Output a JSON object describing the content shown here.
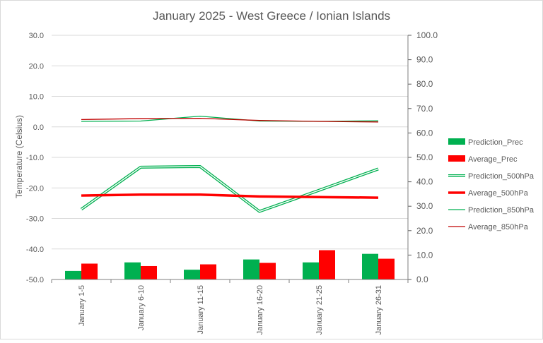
{
  "chart_data": {
    "type": "combo-bar-line",
    "title": "January 2025 - West Greece / Ionian Islands",
    "ylabel": "Temperature (Celsius)",
    "y2label": "",
    "categories": [
      "January 1-5",
      "January 6-10",
      "January 11-15",
      "January 16-20",
      "January 21-25",
      "January 26-31"
    ],
    "ylim": [
      -50,
      30
    ],
    "yticks": [
      "30.0",
      "20.0",
      "10.0",
      "0.0",
      "-10.0",
      "-20.0",
      "-30.0",
      "-40.0",
      "-50.0"
    ],
    "y2lim": [
      0,
      100
    ],
    "y2ticks": [
      "100.0",
      "90.0",
      "80.0",
      "70.0",
      "60.0",
      "50.0",
      "40.0",
      "30.0",
      "20.0",
      "10.0",
      "0.0"
    ],
    "grid": true,
    "legend_position": "right",
    "bar_series": [
      {
        "name": "Prediction_Prec",
        "axis": "secondary",
        "color": "#00b050",
        "values": [
          3.5,
          7,
          4,
          8.2,
          7,
          10.5
        ]
      },
      {
        "name": "Average_Prec",
        "axis": "secondary",
        "color": "#ff0000",
        "values": [
          6.5,
          5.5,
          6.2,
          6.8,
          12,
          8.5
        ]
      }
    ],
    "line_series": [
      {
        "name": "Prediction_500hPa",
        "axis": "primary",
        "color": "#00b050",
        "style": "double",
        "values": [
          -27,
          -13.2,
          -13,
          -27.7,
          -20.8,
          -13.8
        ]
      },
      {
        "name": "Average_500hPa",
        "axis": "primary",
        "color": "#ff0000",
        "style": "thick",
        "values": [
          -22.5,
          -22.2,
          -22.2,
          -22.8,
          -23,
          -23.2
        ]
      },
      {
        "name": "Prediction_850hPa",
        "axis": "primary",
        "color": "#00b050",
        "style": "thin",
        "values": [
          1.8,
          1.9,
          3.5,
          1.9,
          1.8,
          2
        ]
      },
      {
        "name": "Average_850hPa",
        "axis": "primary",
        "color": "#c00000",
        "style": "thin",
        "values": [
          2.4,
          2.7,
          2.8,
          2.1,
          1.8,
          1.6
        ]
      }
    ]
  }
}
